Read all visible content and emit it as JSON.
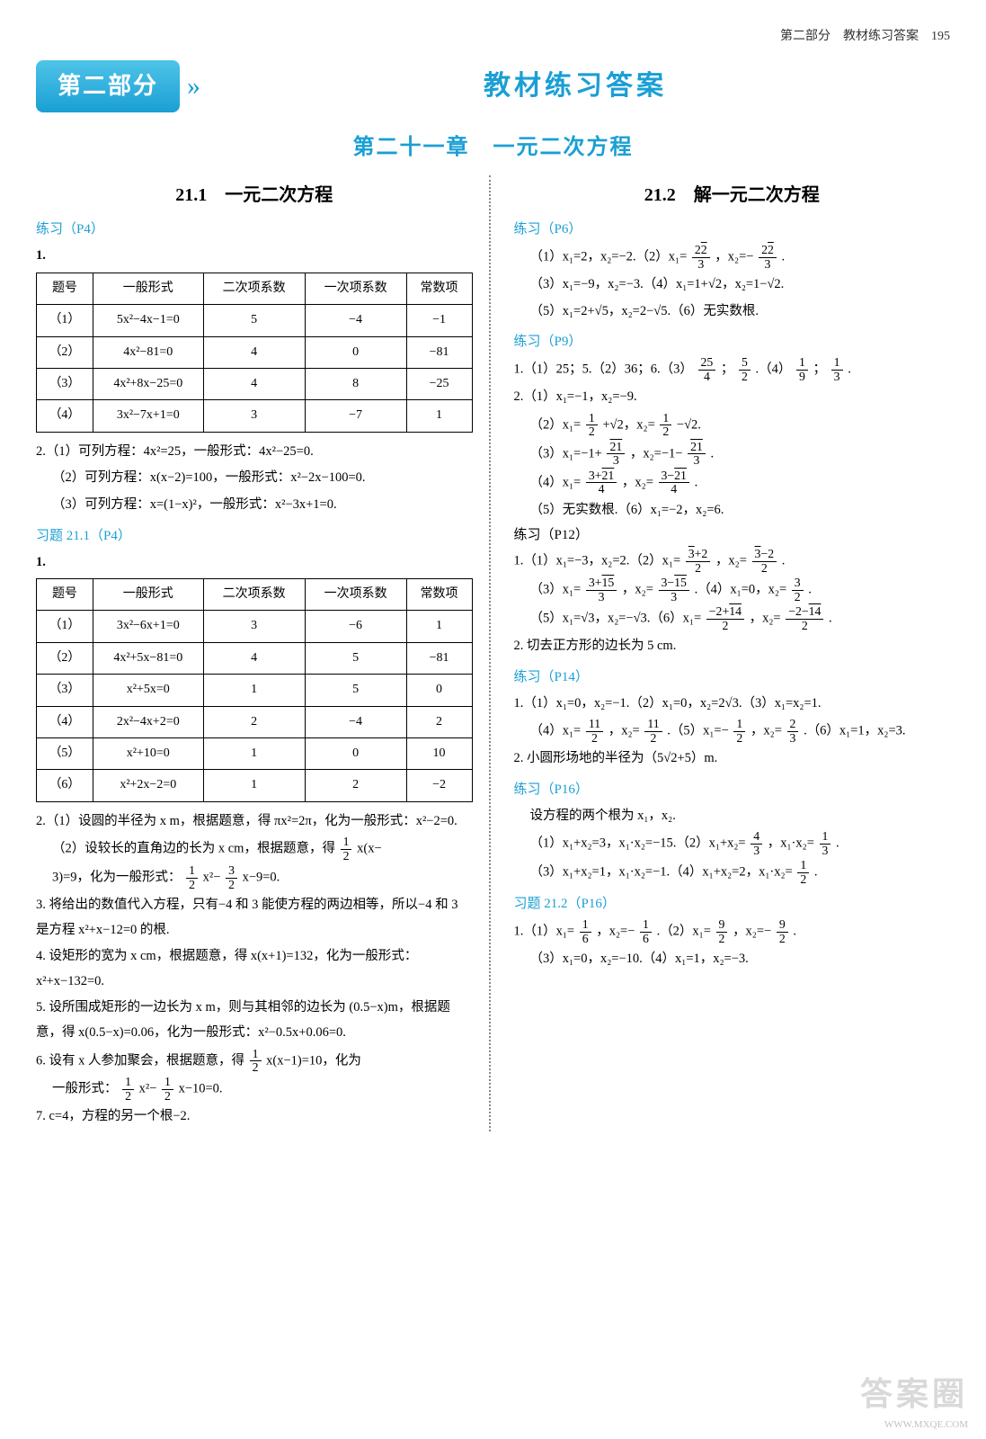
{
  "colors": {
    "accent": "#1a9fd4",
    "text": "#000000",
    "bg": "#ffffff",
    "border": "#000000",
    "divider": "#888888"
  },
  "typography": {
    "base_fontsize": 15,
    "title_fontsize": 30,
    "chapter_fontsize": 24,
    "subsection_fontsize": 20,
    "body_fontsize": 14.5
  },
  "header": {
    "text": "第二部分　教材练习答案　195"
  },
  "banner": {
    "badge": "第二部分",
    "arrows": "»",
    "title": "教材练习答案"
  },
  "chapter": "第二十一章　一元二次方程",
  "left": {
    "subsection": "21.1　一元二次方程",
    "practice1": "练习（P4）",
    "table1": {
      "columns": [
        "题号",
        "一般形式",
        "二次项系数",
        "一次项系数",
        "常数项"
      ],
      "rows": [
        [
          "（1）",
          "5x²−4x−1=0",
          "5",
          "−4",
          "−1"
        ],
        [
          "（2）",
          "4x²−81=0",
          "4",
          "0",
          "−81"
        ],
        [
          "（3）",
          "4x²+8x−25=0",
          "4",
          "8",
          "−25"
        ],
        [
          "（4）",
          "3x²−7x+1=0",
          "3",
          "−7",
          "1"
        ]
      ]
    },
    "p2a": "2.（1）可列方程：4x²=25，一般形式：4x²−25=0.",
    "p2b": "（2）可列方程：x(x−2)=100，一般形式：x²−2x−100=0.",
    "p2c": "（3）可列方程：x=(1−x)²，一般形式：x²−3x+1=0.",
    "xiti": "习题 21.1（P4）",
    "table2": {
      "columns": [
        "题号",
        "一般形式",
        "二次项系数",
        "一次项系数",
        "常数项"
      ],
      "rows": [
        [
          "（1）",
          "3x²−6x+1=0",
          "3",
          "−6",
          "1"
        ],
        [
          "（2）",
          "4x²+5x−81=0",
          "4",
          "5",
          "−81"
        ],
        [
          "（3）",
          "x²+5x=0",
          "1",
          "5",
          "0"
        ],
        [
          "（4）",
          "2x²−4x+2=0",
          "2",
          "−4",
          "2"
        ],
        [
          "（5）",
          "x²+10=0",
          "1",
          "0",
          "10"
        ],
        [
          "（6）",
          "x²+2x−2=0",
          "1",
          "2",
          "−2"
        ]
      ]
    },
    "q2a_pre": "2.（1）设圆的半径为 x m，根据题意，得 πx²=2π，化为一般形式：x²−2=0.",
    "q2b_pre": "（2）设较长的直角边的长为 x cm，根据题意，得",
    "q2b_expr_1": "x(x−",
    "q2b_line2a": "3)=9，化为一般形式：",
    "q2b_line2b": "x²−",
    "q2b_line2c": "x−9=0.",
    "q3": "3. 将给出的数值代入方程，只有−4 和 3 能使方程的两边相等，所以−4 和 3 是方程 x²+x−12=0 的根.",
    "q4": "4. 设矩形的宽为 x cm，根据题意，得 x(x+1)=132，化为一般形式：x²+x−132=0.",
    "q5": "5. 设所围成矩形的一边长为 x m，则与其相邻的边长为 (0.5−x)m，根据题意，得 x(0.5−x)=0.06，化为一般形式：x²−0.5x+0.06=0.",
    "q6a": "6. 设有 x 人参加聚会，根据题意，得",
    "q6b": "x(x−1)=10，化为",
    "q6c": "一般形式：",
    "q6d": "x²−",
    "q6e": "x−10=0.",
    "q7": "7. c=4，方程的另一个根−2."
  },
  "right": {
    "subsection": "21.2　解一元二次方程",
    "p6": "练习（P6）",
    "p6_l1a": "（1）x₁=2，x₂=−2.（2）x₁=",
    "p6_l1b": "，x₂=−",
    "p6_l1c": ".",
    "p6_l2": "（3）x₁=−9，x₂=−3.（4）x₁=1+√2，x₂=1−√2.",
    "p6_l3": "（5）x₁=2+√5，x₂=2−√5.（6）无实数根.",
    "p9": "练习（P9）",
    "p9_l1a": "1.（1）25；5.（2）36；6.（3）",
    "p9_l1b": "；",
    "p9_l1c": ".（4）",
    "p9_l1d": "；",
    "p9_l1e": ".",
    "p9_2_1": "2.（1）x₁=−1，x₂=−9.",
    "p9_2_2a": "（2）x₁=",
    "p9_2_2b": "+√2，x₂=",
    "p9_2_2c": "−√2.",
    "p9_2_3a": "（3）x₁=−1+",
    "p9_2_3b": "，x₂=−1−",
    "p9_2_3c": ".",
    "p9_2_4a": "（4）x₁=",
    "p9_2_4b": "，x₂=",
    "p9_2_4c": ".",
    "p9_2_5": "（5）无实数根.（6）x₁=−2，x₂=6.",
    "p12": "练习（P12）",
    "p12_1a": "1.（1）x₁=−3，x₂=2.（2）x₁=",
    "p12_1b": "，x₂=",
    "p12_1c": ".",
    "p12_2a": "（3）x₁=",
    "p12_2b": "，x₂=",
    "p12_2c": ".（4）x₁=0，x₂=",
    "p12_2d": ".",
    "p12_3a": "（5）x₁=√3，x₂=−√3.（6）x₁=",
    "p12_3b": "，x₂=",
    "p12_3c": ".",
    "p12_q2": "2. 切去正方形的边长为 5 cm.",
    "p14": "练习（P14）",
    "p14_1": "1.（1）x₁=0，x₂=−1.（2）x₁=0，x₂=2√3.（3）x₁=x₂=1.",
    "p14_2a": "（4）x₁=",
    "p14_2b": "，x₂=",
    "p14_2c": ".（5）x₁=−",
    "p14_2d": "，x₂=",
    "p14_2e": ".（6）x₁=1，x₂=3.",
    "p14_q2": "2. 小圆形场地的半径为（5√2+5）m.",
    "p16": "练习（P16）",
    "p16_intro": "设方程的两个根为 x₁，x₂.",
    "p16_1a": "（1）x₁+x₂=3，x₁·x₂=−15.（2）x₁+x₂=",
    "p16_1b": "，x₁·x₂=",
    "p16_1c": ".",
    "p16_2a": "（3）x₁+x₂=1，x₁·x₂=−1.（4）x₁+x₂=2，x₁·x₂=",
    "p16_2b": ".",
    "xiti212": "习题 21.2（P16）",
    "x212_1a": "1.（1）x₁=",
    "x212_1b": "，x₂=−",
    "x212_1c": ".（2）x₁=",
    "x212_1d": "，x₂=−",
    "x212_1e": ".",
    "x212_2": "（3）x₁=0，x₂=−10.（4）x₁=1，x₂=−3."
  },
  "watermark": {
    "main": "答案圈",
    "sub": "WWW.MXQE.COM"
  }
}
